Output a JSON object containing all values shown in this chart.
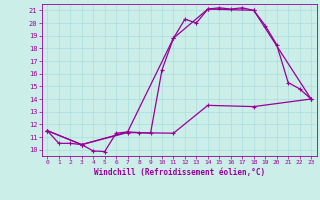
{
  "xlabel": "Windchill (Refroidissement éolien,°C)",
  "xlim": [
    -0.5,
    23.5
  ],
  "ylim": [
    9.5,
    21.5
  ],
  "xticks": [
    0,
    1,
    2,
    3,
    4,
    5,
    6,
    7,
    8,
    9,
    10,
    11,
    12,
    13,
    14,
    15,
    16,
    17,
    18,
    19,
    20,
    21,
    22,
    23
  ],
  "yticks": [
    10,
    11,
    12,
    13,
    14,
    15,
    16,
    17,
    18,
    19,
    20,
    21
  ],
  "bg_color": "#cceee8",
  "line_color": "#990099",
  "grid_color": "#aadddd",
  "line1_x": [
    0,
    1,
    2,
    3,
    4,
    5,
    6,
    7,
    8,
    9,
    10,
    11,
    12,
    13,
    14,
    15,
    16,
    17,
    18,
    19,
    20,
    21,
    22,
    23
  ],
  "line1_y": [
    11.5,
    10.5,
    10.5,
    10.4,
    9.9,
    9.85,
    11.3,
    11.4,
    11.35,
    11.3,
    16.3,
    18.8,
    20.3,
    20.0,
    21.1,
    21.2,
    21.1,
    21.2,
    21.0,
    19.8,
    18.3,
    15.3,
    14.8,
    14.0
  ],
  "line2_x": [
    0,
    3,
    7,
    11,
    14,
    18,
    23
  ],
  "line2_y": [
    11.5,
    10.4,
    11.4,
    18.8,
    21.1,
    21.0,
    14.0
  ],
  "line3_x": [
    0,
    3,
    7,
    11,
    14,
    18,
    23
  ],
  "line3_y": [
    11.5,
    10.4,
    11.35,
    11.3,
    13.5,
    13.4,
    14.0
  ]
}
